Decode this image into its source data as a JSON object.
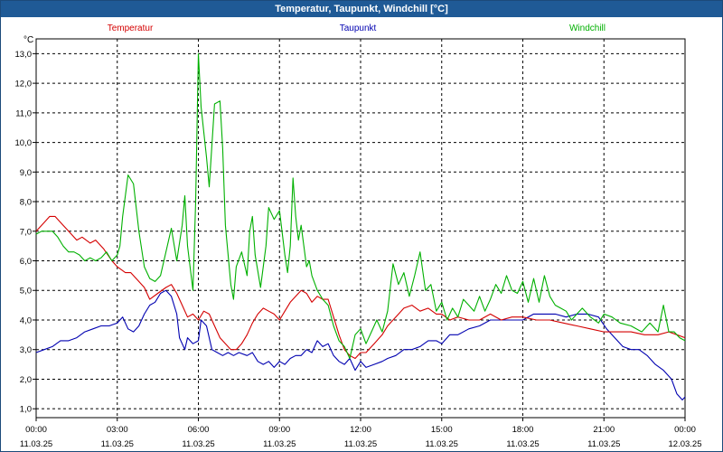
{
  "window": {
    "title": "Temperatur, Taupunkt, Windchill [°C]"
  },
  "chart_data": {
    "type": "line",
    "unit_label": "°C",
    "ylim": [
      0.7,
      13.5
    ],
    "yticks": [
      "1,0",
      "2,0",
      "3,0",
      "4,0",
      "5,0",
      "6,0",
      "7,0",
      "8,0",
      "9,0",
      "10,0",
      "11,0",
      "12,0",
      "13,0"
    ],
    "ytick_values": [
      1,
      2,
      3,
      4,
      5,
      6,
      7,
      8,
      9,
      10,
      11,
      12,
      13
    ],
    "xlim": [
      0,
      24
    ],
    "xticks": [
      {
        "x": 0,
        "time": "00:00",
        "date": "11.03.25"
      },
      {
        "x": 3,
        "time": "03:00",
        "date": "11.03.25"
      },
      {
        "x": 6,
        "time": "06:00",
        "date": "11.03.25"
      },
      {
        "x": 9,
        "time": "09:00",
        "date": "11.03.25"
      },
      {
        "x": 12,
        "time": "12:00",
        "date": "11.03.25"
      },
      {
        "x": 15,
        "time": "15:00",
        "date": "11.03.25"
      },
      {
        "x": 18,
        "time": "18:00",
        "date": "11.03.25"
      },
      {
        "x": 21,
        "time": "21:00",
        "date": "11.03.25"
      },
      {
        "x": 24,
        "time": "00:00",
        "date": "12.03.25"
      }
    ],
    "grid": true,
    "legend_placement": "top",
    "series": [
      {
        "name": "Temperatur",
        "color": "#d40000",
        "points": [
          [
            0,
            7.0
          ],
          [
            0.3,
            7.3
          ],
          [
            0.5,
            7.5
          ],
          [
            0.7,
            7.5
          ],
          [
            1.0,
            7.2
          ],
          [
            1.3,
            6.9
          ],
          [
            1.5,
            6.7
          ],
          [
            1.7,
            6.8
          ],
          [
            2.0,
            6.6
          ],
          [
            2.2,
            6.7
          ],
          [
            2.5,
            6.4
          ],
          [
            2.8,
            6.0
          ],
          [
            3.0,
            5.8
          ],
          [
            3.3,
            5.6
          ],
          [
            3.5,
            5.6
          ],
          [
            3.7,
            5.4
          ],
          [
            4.0,
            5.1
          ],
          [
            4.2,
            4.7
          ],
          [
            4.5,
            4.9
          ],
          [
            4.8,
            5.1
          ],
          [
            5.0,
            5.2
          ],
          [
            5.2,
            4.9
          ],
          [
            5.4,
            4.5
          ],
          [
            5.6,
            4.1
          ],
          [
            5.8,
            4.2
          ],
          [
            6.0,
            4.0
          ],
          [
            6.2,
            4.3
          ],
          [
            6.4,
            4.2
          ],
          [
            6.6,
            3.8
          ],
          [
            6.8,
            3.4
          ],
          [
            7.0,
            3.2
          ],
          [
            7.2,
            3.0
          ],
          [
            7.4,
            3.0
          ],
          [
            7.6,
            3.2
          ],
          [
            7.8,
            3.5
          ],
          [
            8.0,
            3.9
          ],
          [
            8.2,
            4.2
          ],
          [
            8.4,
            4.4
          ],
          [
            8.6,
            4.3
          ],
          [
            8.8,
            4.2
          ],
          [
            9.0,
            4.0
          ],
          [
            9.2,
            4.3
          ],
          [
            9.4,
            4.6
          ],
          [
            9.6,
            4.8
          ],
          [
            9.8,
            5.0
          ],
          [
            10.0,
            4.9
          ],
          [
            10.2,
            4.6
          ],
          [
            10.4,
            4.8
          ],
          [
            10.6,
            4.7
          ],
          [
            10.8,
            4.7
          ],
          [
            11.0,
            4.1
          ],
          [
            11.2,
            3.5
          ],
          [
            11.4,
            3.0
          ],
          [
            11.6,
            2.8
          ],
          [
            11.8,
            2.7
          ],
          [
            12.0,
            2.9
          ],
          [
            12.2,
            2.9
          ],
          [
            12.5,
            3.2
          ],
          [
            12.8,
            3.5
          ],
          [
            13.0,
            3.8
          ],
          [
            13.3,
            4.1
          ],
          [
            13.6,
            4.4
          ],
          [
            13.9,
            4.5
          ],
          [
            14.2,
            4.3
          ],
          [
            14.5,
            4.4
          ],
          [
            14.8,
            4.2
          ],
          [
            15.0,
            4.2
          ],
          [
            15.3,
            4.0
          ],
          [
            15.6,
            4.1
          ],
          [
            16.0,
            4.0
          ],
          [
            16.4,
            4.0
          ],
          [
            16.8,
            4.2
          ],
          [
            17.2,
            4.0
          ],
          [
            17.6,
            4.1
          ],
          [
            18.0,
            4.1
          ],
          [
            18.5,
            4.0
          ],
          [
            19.0,
            4.0
          ],
          [
            19.5,
            3.9
          ],
          [
            20.0,
            3.8
          ],
          [
            20.5,
            3.7
          ],
          [
            21.0,
            3.6
          ],
          [
            21.5,
            3.6
          ],
          [
            22.0,
            3.6
          ],
          [
            22.5,
            3.5
          ],
          [
            23.0,
            3.5
          ],
          [
            23.4,
            3.6
          ],
          [
            23.7,
            3.5
          ],
          [
            24.0,
            3.4
          ]
        ]
      },
      {
        "name": "Taupunkt",
        "color": "#0000b0",
        "points": [
          [
            0,
            2.9
          ],
          [
            0.3,
            3.0
          ],
          [
            0.6,
            3.1
          ],
          [
            0.9,
            3.3
          ],
          [
            1.2,
            3.3
          ],
          [
            1.5,
            3.4
          ],
          [
            1.8,
            3.6
          ],
          [
            2.1,
            3.7
          ],
          [
            2.4,
            3.8
          ],
          [
            2.7,
            3.8
          ],
          [
            3.0,
            3.9
          ],
          [
            3.2,
            4.1
          ],
          [
            3.4,
            3.7
          ],
          [
            3.6,
            3.6
          ],
          [
            3.8,
            3.8
          ],
          [
            4.0,
            4.2
          ],
          [
            4.2,
            4.5
          ],
          [
            4.4,
            4.6
          ],
          [
            4.6,
            4.9
          ],
          [
            4.8,
            5.0
          ],
          [
            5.0,
            4.8
          ],
          [
            5.2,
            4.2
          ],
          [
            5.3,
            3.4
          ],
          [
            5.5,
            3.0
          ],
          [
            5.6,
            3.4
          ],
          [
            5.8,
            3.2
          ],
          [
            6.0,
            3.3
          ],
          [
            6.1,
            4.0
          ],
          [
            6.3,
            3.8
          ],
          [
            6.5,
            3.0
          ],
          [
            6.7,
            2.9
          ],
          [
            6.9,
            2.8
          ],
          [
            7.1,
            2.9
          ],
          [
            7.3,
            2.8
          ],
          [
            7.5,
            2.9
          ],
          [
            7.8,
            2.8
          ],
          [
            8.0,
            2.9
          ],
          [
            8.2,
            2.6
          ],
          [
            8.4,
            2.5
          ],
          [
            8.6,
            2.6
          ],
          [
            8.8,
            2.4
          ],
          [
            9.0,
            2.6
          ],
          [
            9.2,
            2.5
          ],
          [
            9.4,
            2.7
          ],
          [
            9.6,
            2.8
          ],
          [
            9.8,
            2.8
          ],
          [
            10.0,
            3.0
          ],
          [
            10.2,
            2.9
          ],
          [
            10.4,
            3.3
          ],
          [
            10.6,
            3.1
          ],
          [
            10.8,
            3.2
          ],
          [
            11.0,
            2.8
          ],
          [
            11.2,
            2.6
          ],
          [
            11.4,
            2.5
          ],
          [
            11.6,
            2.7
          ],
          [
            11.8,
            2.3
          ],
          [
            12.0,
            2.6
          ],
          [
            12.2,
            2.4
          ],
          [
            12.5,
            2.5
          ],
          [
            12.8,
            2.6
          ],
          [
            13.0,
            2.7
          ],
          [
            13.3,
            2.8
          ],
          [
            13.6,
            3.0
          ],
          [
            13.9,
            3.0
          ],
          [
            14.2,
            3.1
          ],
          [
            14.5,
            3.3
          ],
          [
            14.8,
            3.3
          ],
          [
            15.0,
            3.2
          ],
          [
            15.3,
            3.5
          ],
          [
            15.6,
            3.5
          ],
          [
            16.0,
            3.7
          ],
          [
            16.4,
            3.8
          ],
          [
            16.8,
            4.0
          ],
          [
            17.2,
            4.0
          ],
          [
            17.6,
            4.0
          ],
          [
            18.0,
            4.0
          ],
          [
            18.4,
            4.2
          ],
          [
            18.8,
            4.2
          ],
          [
            19.2,
            4.2
          ],
          [
            19.6,
            4.1
          ],
          [
            20.0,
            4.2
          ],
          [
            20.4,
            4.2
          ],
          [
            20.8,
            4.1
          ],
          [
            21.1,
            3.7
          ],
          [
            21.4,
            3.4
          ],
          [
            21.7,
            3.1
          ],
          [
            22.0,
            3.0
          ],
          [
            22.3,
            3.0
          ],
          [
            22.6,
            2.8
          ],
          [
            22.9,
            2.5
          ],
          [
            23.2,
            2.3
          ],
          [
            23.5,
            2.0
          ],
          [
            23.7,
            1.5
          ],
          [
            23.9,
            1.3
          ],
          [
            24.0,
            1.4
          ]
        ]
      },
      {
        "name": "Windchill",
        "color": "#00b000",
        "points": [
          [
            0,
            6.9
          ],
          [
            0.2,
            7.0
          ],
          [
            0.4,
            7.0
          ],
          [
            0.6,
            7.0
          ],
          [
            0.8,
            6.8
          ],
          [
            1.0,
            6.5
          ],
          [
            1.2,
            6.3
          ],
          [
            1.4,
            6.3
          ],
          [
            1.6,
            6.2
          ],
          [
            1.8,
            6.0
          ],
          [
            2.0,
            6.1
          ],
          [
            2.2,
            6.0
          ],
          [
            2.4,
            6.1
          ],
          [
            2.6,
            6.3
          ],
          [
            2.8,
            6.0
          ],
          [
            3.0,
            6.2
          ],
          [
            3.1,
            6.5
          ],
          [
            3.2,
            7.5
          ],
          [
            3.4,
            8.9
          ],
          [
            3.6,
            8.6
          ],
          [
            3.8,
            7.0
          ],
          [
            4.0,
            5.8
          ],
          [
            4.2,
            5.4
          ],
          [
            4.4,
            5.3
          ],
          [
            4.6,
            5.5
          ],
          [
            4.8,
            6.3
          ],
          [
            5.0,
            7.1
          ],
          [
            5.2,
            6.0
          ],
          [
            5.4,
            7.2
          ],
          [
            5.5,
            8.2
          ],
          [
            5.6,
            6.5
          ],
          [
            5.8,
            5.0
          ],
          [
            5.9,
            8.0
          ],
          [
            6.0,
            13.0
          ],
          [
            6.1,
            11.2
          ],
          [
            6.3,
            9.5
          ],
          [
            6.4,
            8.5
          ],
          [
            6.6,
            11.3
          ],
          [
            6.8,
            11.4
          ],
          [
            6.9,
            9.8
          ],
          [
            7.0,
            7.2
          ],
          [
            7.2,
            5.2
          ],
          [
            7.3,
            4.7
          ],
          [
            7.4,
            5.8
          ],
          [
            7.6,
            6.3
          ],
          [
            7.8,
            5.5
          ],
          [
            7.9,
            7.0
          ],
          [
            8.0,
            7.5
          ],
          [
            8.1,
            6.2
          ],
          [
            8.3,
            5.1
          ],
          [
            8.5,
            6.5
          ],
          [
            8.6,
            7.8
          ],
          [
            8.8,
            7.4
          ],
          [
            9.0,
            7.7
          ],
          [
            9.2,
            6.2
          ],
          [
            9.3,
            5.6
          ],
          [
            9.4,
            6.5
          ],
          [
            9.5,
            8.8
          ],
          [
            9.6,
            7.5
          ],
          [
            9.7,
            6.7
          ],
          [
            9.8,
            7.2
          ],
          [
            9.9,
            6.5
          ],
          [
            10.0,
            5.8
          ],
          [
            10.1,
            6.0
          ],
          [
            10.2,
            5.5
          ],
          [
            10.4,
            5.0
          ],
          [
            10.6,
            4.7
          ],
          [
            10.8,
            4.5
          ],
          [
            11.0,
            3.8
          ],
          [
            11.2,
            3.3
          ],
          [
            11.4,
            3.1
          ],
          [
            11.6,
            2.7
          ],
          [
            11.8,
            3.5
          ],
          [
            12.0,
            3.7
          ],
          [
            12.2,
            3.2
          ],
          [
            12.4,
            3.6
          ],
          [
            12.6,
            4.0
          ],
          [
            12.8,
            3.6
          ],
          [
            13.0,
            4.3
          ],
          [
            13.2,
            5.9
          ],
          [
            13.4,
            5.2
          ],
          [
            13.6,
            5.6
          ],
          [
            13.8,
            4.8
          ],
          [
            14.0,
            5.5
          ],
          [
            14.2,
            6.3
          ],
          [
            14.4,
            5.0
          ],
          [
            14.6,
            5.2
          ],
          [
            14.8,
            4.3
          ],
          [
            15.0,
            4.6
          ],
          [
            15.2,
            4.0
          ],
          [
            15.4,
            4.4
          ],
          [
            15.6,
            4.1
          ],
          [
            15.8,
            4.7
          ],
          [
            16.0,
            4.5
          ],
          [
            16.2,
            4.3
          ],
          [
            16.4,
            4.8
          ],
          [
            16.6,
            4.3
          ],
          [
            16.8,
            4.7
          ],
          [
            17.0,
            5.2
          ],
          [
            17.2,
            4.9
          ],
          [
            17.4,
            5.5
          ],
          [
            17.6,
            5.0
          ],
          [
            17.8,
            4.9
          ],
          [
            18.0,
            5.3
          ],
          [
            18.2,
            4.6
          ],
          [
            18.4,
            5.4
          ],
          [
            18.6,
            4.6
          ],
          [
            18.8,
            5.5
          ],
          [
            19.0,
            4.8
          ],
          [
            19.2,
            4.5
          ],
          [
            19.4,
            4.4
          ],
          [
            19.6,
            4.3
          ],
          [
            19.8,
            4.0
          ],
          [
            20.0,
            4.2
          ],
          [
            20.2,
            4.4
          ],
          [
            20.5,
            4.1
          ],
          [
            20.8,
            3.9
          ],
          [
            21.0,
            4.2
          ],
          [
            21.3,
            4.1
          ],
          [
            21.6,
            3.9
          ],
          [
            22.0,
            3.8
          ],
          [
            22.4,
            3.6
          ],
          [
            22.7,
            3.9
          ],
          [
            23.0,
            3.6
          ],
          [
            23.2,
            4.5
          ],
          [
            23.4,
            3.6
          ],
          [
            23.6,
            3.6
          ],
          [
            23.8,
            3.4
          ],
          [
            24.0,
            3.3
          ]
        ]
      }
    ]
  }
}
